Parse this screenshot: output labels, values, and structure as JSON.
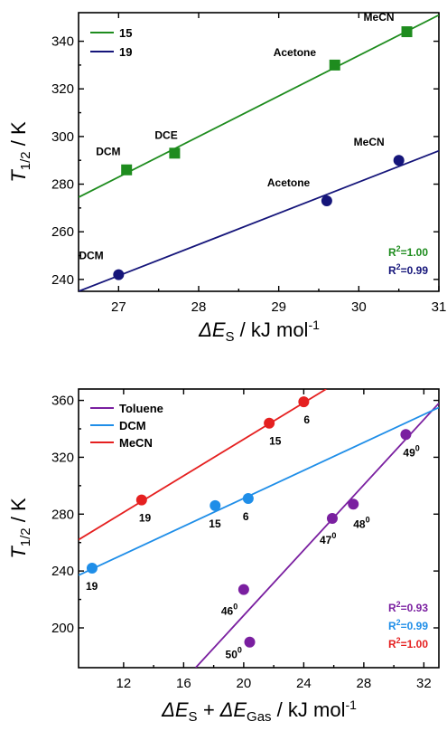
{
  "chart_data": [
    {
      "type": "scatter",
      "xlabel_main": "ΔE",
      "xlabel_sub": "S",
      "xlabel_unit": " / kJ mol",
      "xlabel_sup": "-1",
      "ylabel_main": "T",
      "ylabel_sub": "1/2",
      "ylabel_unit": " / K",
      "xlim": [
        26.5,
        31.0
      ],
      "ylim": [
        235,
        352
      ],
      "xticks": [
        27,
        28,
        29,
        30,
        31
      ],
      "yticks": [
        240,
        260,
        280,
        300,
        320,
        340
      ],
      "legend_position": "top-left",
      "series": [
        {
          "name": "15",
          "color": "#1e8c1e",
          "marker": "square",
          "points": [
            {
              "x": 27.1,
              "y": 286,
              "label": "DCM"
            },
            {
              "x": 27.7,
              "y": 293,
              "label": "DCE"
            },
            {
              "x": 29.7,
              "y": 330,
              "label": "Acetone"
            },
            {
              "x": 30.6,
              "y": 344,
              "label": "MeCN"
            }
          ],
          "fit": {
            "x0": 26.5,
            "y0": 274.5,
            "x1": 31.0,
            "y1": 351
          },
          "r2": "1.00"
        },
        {
          "name": "19",
          "color": "#15157a",
          "marker": "circle",
          "points": [
            {
              "x": 27.0,
              "y": 242,
              "label": "DCM"
            },
            {
              "x": 29.6,
              "y": 273,
              "label": "Acetone"
            },
            {
              "x": 30.5,
              "y": 290,
              "label": "MeCN"
            }
          ],
          "fit": {
            "x0": 26.5,
            "y0": 235,
            "x1": 31.0,
            "y1": 294
          },
          "r2": "0.99"
        }
      ]
    },
    {
      "type": "scatter",
      "xlabel_main": "ΔE",
      "xlabel_sub": "S",
      "xlabel_mid": " + ΔE",
      "xlabel_sub2": "Gas",
      "xlabel_unit": " / kJ mol",
      "xlabel_sup": "-1",
      "ylabel_main": "T",
      "ylabel_sub": "1/2",
      "ylabel_unit": " / K",
      "xlim": [
        9.0,
        33.0
      ],
      "ylim": [
        172,
        368
      ],
      "xticks": [
        12,
        16,
        20,
        24,
        28,
        32
      ],
      "yticks": [
        200,
        240,
        280,
        320,
        360
      ],
      "legend_position": "top-left",
      "series": [
        {
          "name": "Toluene",
          "color": "#7a1fa0",
          "marker": "circle",
          "points": [
            {
              "x": 20.0,
              "y": 227,
              "label": "46",
              "sup": "0"
            },
            {
              "x": 20.4,
              "y": 190,
              "label": "50",
              "sup": "0"
            },
            {
              "x": 25.9,
              "y": 277,
              "label": "47",
              "sup": "0"
            },
            {
              "x": 27.3,
              "y": 287,
              "label": "48",
              "sup": "0"
            },
            {
              "x": 30.8,
              "y": 336,
              "label": "49",
              "sup": "0"
            }
          ],
          "fit": {
            "x0": 16.8,
            "y0": 172,
            "x1": 33.0,
            "y1": 358
          },
          "r2": "0.93"
        },
        {
          "name": "DCM",
          "color": "#1f8ee8",
          "marker": "circle",
          "points": [
            {
              "x": 9.9,
              "y": 242,
              "label": "19"
            },
            {
              "x": 18.1,
              "y": 286,
              "label": "15"
            },
            {
              "x": 20.3,
              "y": 291,
              "label": "6"
            }
          ],
          "fit": {
            "x0": 9.0,
            "y0": 237,
            "x1": 33.0,
            "y1": 355
          },
          "r2": "0.99"
        },
        {
          "name": "MeCN",
          "color": "#e52020",
          "marker": "circle",
          "points": [
            {
              "x": 13.2,
              "y": 290,
              "label": "19"
            },
            {
              "x": 21.7,
              "y": 344,
              "label": "15"
            },
            {
              "x": 24.0,
              "y": 359,
              "label": "6"
            }
          ],
          "fit": {
            "x0": 9.0,
            "y0": 262,
            "x1": 25.5,
            "y1": 368
          },
          "r2": "1.00"
        }
      ]
    }
  ]
}
